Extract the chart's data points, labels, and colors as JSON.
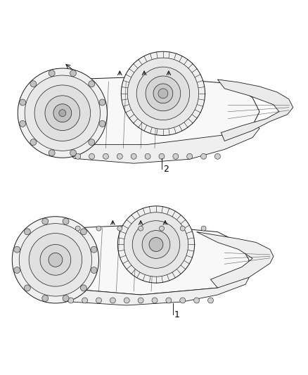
{
  "background_color": "#ffffff",
  "figure_width": 4.38,
  "figure_height": 5.33,
  "dpi": 100,
  "label1": "1",
  "label2": "2",
  "title_color": "#000000",
  "line_color": "#1a1a1a",
  "fill_light": "#f5f5f5",
  "fill_mid": "#e8e8e8",
  "fill_dark": "#d0d0d0",
  "label_fontsize": 9
}
